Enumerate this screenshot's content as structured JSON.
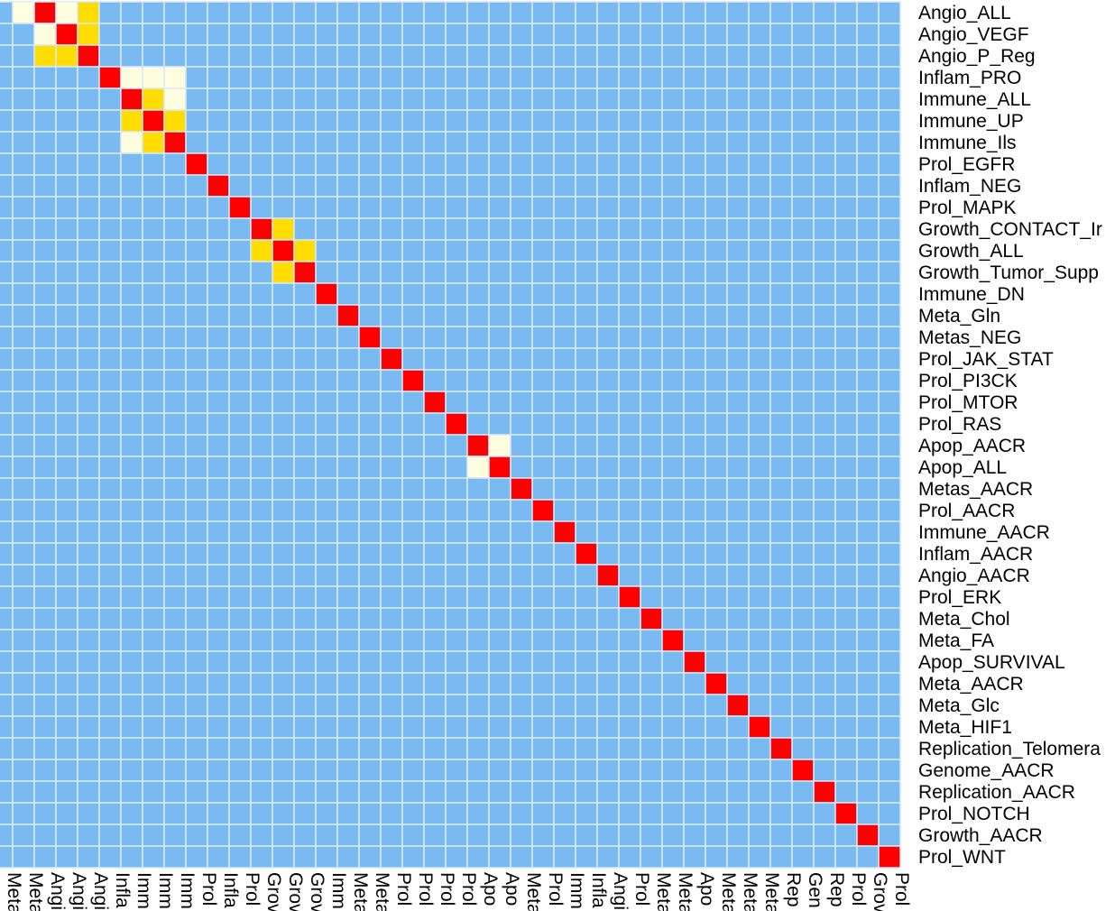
{
  "chart_data": {
    "type": "heatmap",
    "row_labels": [
      "Angio_ALL",
      "Angio_VEGF",
      "Angio_P_Reg",
      "Inflam_PRO",
      "Immune_ALL",
      "Immune_UP",
      "Immune_Ils",
      "Prol_EGFR",
      "Inflam_NEG",
      "Prol_MAPK",
      "Growth_CONTACT_Ir",
      "Growth_ALL",
      "Growth_Tumor_Supp",
      "Immune_DN",
      "Meta_Gln",
      "Metas_NEG",
      "Prol_JAK_STAT",
      "Prol_PI3CK",
      "Prol_MTOR",
      "Prol_RAS",
      "Apop_AACR",
      "Apop_ALL",
      "Metas_AACR",
      "Prol_AACR",
      "Immune_AACR",
      "Inflam_AACR",
      "Angio_AACR",
      "Prol_ERK",
      "Meta_Chol",
      "Meta_FA",
      "Apop_SURVIVAL",
      "Meta_AACR",
      "Meta_Glc",
      "Meta_HIF1",
      "Replication_Telomera",
      "Genome_AACR",
      "Replication_AACR",
      "Prol_NOTCH",
      "Growth_AACR",
      "Prol_WNT"
    ],
    "col_labels": [
      "Meta",
      "Meta",
      "Angi",
      "Angi",
      "Angi",
      "Infla",
      "Imm",
      "Imm",
      "Imm",
      "Prol",
      "Infla",
      "Prol",
      "Grov",
      "Grov",
      "Grov",
      "Imm",
      "Meta",
      "Meta",
      "Prol",
      "Prol",
      "Prol",
      "Prol",
      "Apo",
      "Apo",
      "Meta",
      "Prol",
      "Imm",
      "Infla",
      "Angi",
      "Prol",
      "Meta",
      "Meta",
      "Apo",
      "Meta",
      "Meta",
      "Meta",
      "Rep",
      "Gen",
      "Rep",
      "Prol",
      "Grov",
      "Prol"
    ],
    "cells": [
      {
        "row": 0,
        "col": 1,
        "value": 0.82
      },
      {
        "row": 0,
        "col": 2,
        "value": 1.0
      },
      {
        "row": 0,
        "col": 3,
        "value": 0.84
      },
      {
        "row": 0,
        "col": 4,
        "value": 0.93
      },
      {
        "row": 1,
        "col": 2,
        "value": 0.84
      },
      {
        "row": 1,
        "col": 3,
        "value": 1.0
      },
      {
        "row": 1,
        "col": 4,
        "value": 0.93
      },
      {
        "row": 2,
        "col": 2,
        "value": 0.93
      },
      {
        "row": 2,
        "col": 3,
        "value": 0.93
      },
      {
        "row": 2,
        "col": 4,
        "value": 1.0
      },
      {
        "row": 3,
        "col": 5,
        "value": 1.0
      },
      {
        "row": 3,
        "col": 6,
        "value": 0.82
      },
      {
        "row": 3,
        "col": 7,
        "value": 0.84
      },
      {
        "row": 3,
        "col": 8,
        "value": 0.82
      },
      {
        "row": 4,
        "col": 6,
        "value": 1.0
      },
      {
        "row": 4,
        "col": 7,
        "value": 0.9
      },
      {
        "row": 4,
        "col": 8,
        "value": 0.82
      },
      {
        "row": 5,
        "col": 6,
        "value": 0.9
      },
      {
        "row": 5,
        "col": 7,
        "value": 1.0
      },
      {
        "row": 5,
        "col": 8,
        "value": 0.9
      },
      {
        "row": 6,
        "col": 6,
        "value": 0.82
      },
      {
        "row": 6,
        "col": 7,
        "value": 0.9
      },
      {
        "row": 6,
        "col": 8,
        "value": 1.0
      },
      {
        "row": 7,
        "col": 9,
        "value": 1.0
      },
      {
        "row": 8,
        "col": 10,
        "value": 1.0
      },
      {
        "row": 9,
        "col": 11,
        "value": 1.0
      },
      {
        "row": 10,
        "col": 12,
        "value": 1.0
      },
      {
        "row": 10,
        "col": 13,
        "value": 0.88
      },
      {
        "row": 11,
        "col": 12,
        "value": 0.88
      },
      {
        "row": 11,
        "col": 13,
        "value": 1.0
      },
      {
        "row": 11,
        "col": 14,
        "value": 0.88
      },
      {
        "row": 12,
        "col": 13,
        "value": 0.88
      },
      {
        "row": 12,
        "col": 14,
        "value": 1.0
      },
      {
        "row": 13,
        "col": 15,
        "value": 1.0
      },
      {
        "row": 14,
        "col": 16,
        "value": 1.0
      },
      {
        "row": 15,
        "col": 17,
        "value": 1.0
      },
      {
        "row": 16,
        "col": 18,
        "value": 1.0
      },
      {
        "row": 17,
        "col": 19,
        "value": 1.0
      },
      {
        "row": 18,
        "col": 20,
        "value": 1.0
      },
      {
        "row": 19,
        "col": 21,
        "value": 1.0
      },
      {
        "row": 20,
        "col": 22,
        "value": 1.0
      },
      {
        "row": 20,
        "col": 23,
        "value": 0.82
      },
      {
        "row": 21,
        "col": 22,
        "value": 0.82
      },
      {
        "row": 21,
        "col": 23,
        "value": 1.0
      },
      {
        "row": 22,
        "col": 24,
        "value": 1.0
      },
      {
        "row": 23,
        "col": 25,
        "value": 1.0
      },
      {
        "row": 24,
        "col": 26,
        "value": 1.0
      },
      {
        "row": 25,
        "col": 27,
        "value": 1.0
      },
      {
        "row": 26,
        "col": 28,
        "value": 1.0
      },
      {
        "row": 27,
        "col": 29,
        "value": 1.0
      },
      {
        "row": 28,
        "col": 30,
        "value": 1.0
      },
      {
        "row": 29,
        "col": 31,
        "value": 1.0
      },
      {
        "row": 30,
        "col": 32,
        "value": 1.0
      },
      {
        "row": 31,
        "col": 33,
        "value": 1.0
      },
      {
        "row": 32,
        "col": 34,
        "value": 1.0
      },
      {
        "row": 33,
        "col": 35,
        "value": 1.0
      },
      {
        "row": 34,
        "col": 36,
        "value": 1.0
      },
      {
        "row": 35,
        "col": 37,
        "value": 1.0
      },
      {
        "row": 36,
        "col": 38,
        "value": 1.0
      },
      {
        "row": 37,
        "col": 39,
        "value": 1.0
      },
      {
        "row": 38,
        "col": 40,
        "value": 1.0
      },
      {
        "row": 39,
        "col": 41,
        "value": 1.0
      }
    ],
    "colors": {
      "base": "#7abaf2",
      "mid": "#ffffe0",
      "high": "#ffdd00",
      "diag": "#ff0000",
      "grid_lines": "#d8e9f7"
    }
  }
}
